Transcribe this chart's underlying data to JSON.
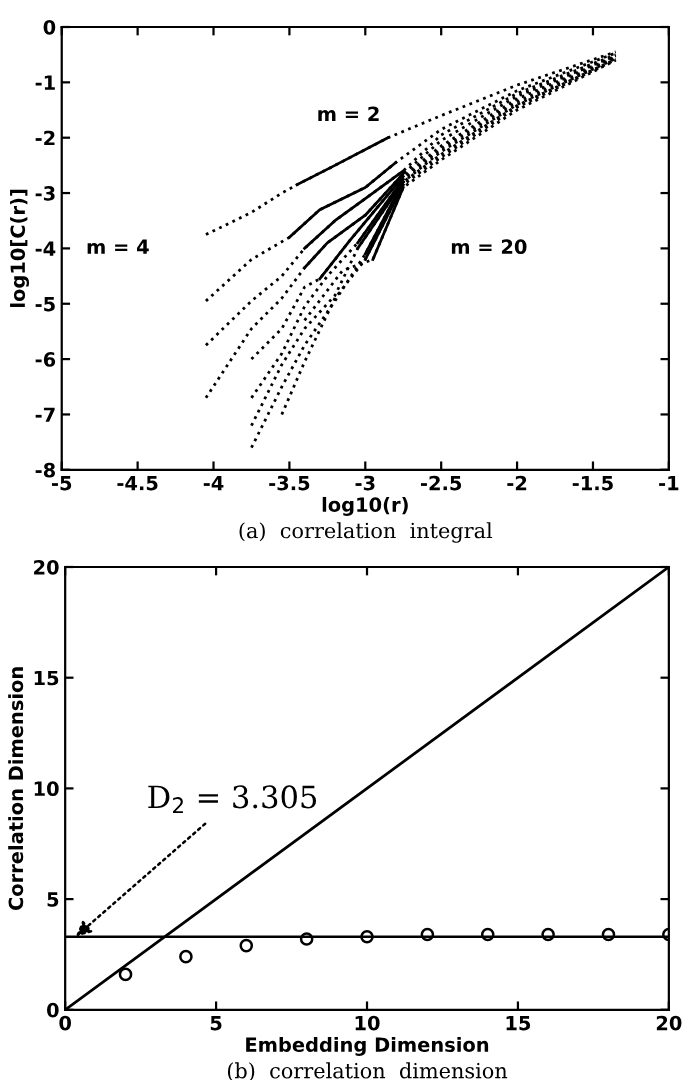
{
  "chart_data": [
    {
      "type": "line",
      "xlabel": "log10(r)",
      "ylabel": "log10[C(r)]",
      "xlim": [
        -5,
        -1
      ],
      "ylim": [
        -8,
        0
      ],
      "xticks": [
        -5,
        -4.5,
        -4,
        -3.5,
        -3,
        -2.5,
        -2,
        -1.5,
        -1
      ],
      "yticks": [
        -8,
        -7,
        -6,
        -5,
        -4,
        -3,
        -2,
        -1,
        0
      ],
      "grid": false,
      "legend": false,
      "marker": "none",
      "annotations": [
        "m = 2",
        "m = 4",
        "m = 20",
        "(a)  correlation  integral"
      ],
      "series": [
        {
          "color": "#000000",
          "line_style": "dotted",
          "x": [
            -4.05,
            -3.75,
            -3.55,
            -3.45,
            -3.2,
            -2.85,
            -2.5,
            -2,
            -1.35
          ],
          "values": [
            -3.75,
            -3.35,
            -3.0,
            -2.85,
            -2.5,
            -2.0,
            -1.6,
            -1.05,
            -0.45
          ]
        },
        {
          "color": "#000000",
          "line_style": "dotted",
          "x": [
            -4.05,
            -3.75,
            -3.5,
            -3.3,
            -3.0,
            -2.8,
            -2.5,
            -2,
            -1.35
          ],
          "values": [
            -4.95,
            -4.2,
            -3.8,
            -3.3,
            -2.9,
            -2.45,
            -1.85,
            -1.15,
            -0.47
          ]
        },
        {
          "color": "#000000",
          "line_style": "dotted",
          "x": [
            -4.05,
            -3.75,
            -3.55,
            -3.4,
            -3.2,
            -3.0,
            -2.75,
            -2.5,
            -2,
            -1.35
          ],
          "values": [
            -5.75,
            -4.95,
            -4.5,
            -4.0,
            -3.5,
            -3.1,
            -2.6,
            -1.95,
            -1.2,
            -0.5
          ]
        },
        {
          "color": "#000000",
          "line_style": "dotted",
          "x": [
            -4.05,
            -3.75,
            -3.55,
            -3.4,
            -3.25,
            -3.0,
            -2.75,
            -2.5,
            -2,
            -1.35
          ],
          "values": [
            -6.7,
            -5.45,
            -4.9,
            -4.35,
            -3.9,
            -3.4,
            -2.65,
            -2.05,
            -1.25,
            -0.52
          ]
        },
        {
          "color": "#000000",
          "line_style": "dotted",
          "x": [
            -3.75,
            -3.55,
            -3.4,
            -3.3,
            -3.1,
            -2.75,
            -2.5,
            -2,
            -1.35
          ],
          "values": [
            -6.0,
            -5.45,
            -4.7,
            -4.55,
            -3.85,
            -2.7,
            -2.15,
            -1.3,
            -0.53
          ]
        },
        {
          "color": "#000000",
          "line_style": "dotted",
          "x": [
            -3.75,
            -3.55,
            -3.4,
            -3.25,
            -3.05,
            -2.75,
            -2.5,
            -2,
            -1.35
          ],
          "values": [
            -6.7,
            -5.9,
            -5.05,
            -4.5,
            -3.9,
            -2.75,
            -2.2,
            -1.35,
            -0.55
          ]
        },
        {
          "color": "#000000",
          "line_style": "dotted",
          "x": [
            -3.75,
            -3.55,
            -3.4,
            -3.2,
            -3.05,
            -2.75,
            -2.5,
            -2,
            -1.35
          ],
          "values": [
            -7.2,
            -6.1,
            -5.45,
            -4.85,
            -4.0,
            -2.8,
            -2.25,
            -1.4,
            -0.57
          ]
        },
        {
          "color": "#000000",
          "line_style": "dotted",
          "x": [
            -3.75,
            -3.55,
            -3.4,
            -3.2,
            -3.0,
            -2.75,
            -2.5,
            -2,
            -1.35
          ],
          "values": [
            -7.6,
            -6.5,
            -5.75,
            -4.95,
            -4.1,
            -2.8,
            -2.3,
            -1.42,
            -0.58
          ]
        },
        {
          "color": "#000000",
          "line_style": "dotted",
          "x": [
            -3.55,
            -3.4,
            -3.2,
            -3.0,
            -2.75,
            -2.5,
            -2,
            -1.35
          ],
          "values": [
            -7.0,
            -6.05,
            -4.9,
            -4.2,
            -2.85,
            -2.35,
            -1.45,
            -0.59
          ]
        },
        {
          "color": "#000000",
          "line_style": "dotted",
          "x": [
            -3.4,
            -3.15,
            -2.95,
            -2.75,
            -2.5,
            -2,
            -1.35
          ],
          "values": [
            -5.3,
            -4.4,
            -4.2,
            -2.9,
            -2.4,
            -1.5,
            -0.6
          ]
        },
        {
          "color": "#000000",
          "line_style": "solid",
          "x": [
            -3.45,
            -3.2,
            -2.85
          ],
          "values": [
            -2.85,
            -2.5,
            -2.0
          ]
        },
        {
          "color": "#000000",
          "line_style": "solid",
          "x": [
            -3.5,
            -3.3,
            -3.0,
            -2.8
          ],
          "values": [
            -3.8,
            -3.3,
            -2.9,
            -2.45
          ]
        },
        {
          "color": "#000000",
          "line_style": "solid",
          "x": [
            -3.4,
            -3.2,
            -3.0,
            -2.75
          ],
          "values": [
            -4.0,
            -3.5,
            -3.1,
            -2.6
          ]
        },
        {
          "color": "#000000",
          "line_style": "solid",
          "x": [
            -3.4,
            -3.25,
            -3.0,
            -2.75
          ],
          "values": [
            -4.35,
            -3.9,
            -3.4,
            -2.65
          ]
        },
        {
          "color": "#000000",
          "line_style": "solid",
          "x": [
            -3.3,
            -3.1,
            -2.75
          ],
          "values": [
            -4.55,
            -3.85,
            -2.7
          ]
        },
        {
          "color": "#000000",
          "line_style": "solid",
          "x": [
            -3.05,
            -2.75
          ],
          "values": [
            -3.9,
            -2.75
          ]
        },
        {
          "color": "#000000",
          "line_style": "solid",
          "x": [
            -3.05,
            -2.75
          ],
          "values": [
            -4.0,
            -2.8
          ]
        },
        {
          "color": "#000000",
          "line_style": "solid",
          "x": [
            -3.0,
            -2.75
          ],
          "values": [
            -4.1,
            -2.8
          ]
        },
        {
          "color": "#000000",
          "line_style": "solid",
          "x": [
            -3.0,
            -2.75
          ],
          "values": [
            -4.2,
            -2.85
          ]
        },
        {
          "color": "#000000",
          "line_style": "solid",
          "x": [
            -2.95,
            -2.75
          ],
          "values": [
            -4.2,
            -2.9
          ]
        }
      ]
    },
    {
      "type": "scatter",
      "xlabel": "Embedding Dimension",
      "ylabel": "Correlation Dimension",
      "xlim": [
        0,
        20
      ],
      "ylim": [
        0,
        20
      ],
      "xticks": [
        0,
        5,
        10,
        15,
        20
      ],
      "yticks": [
        0,
        5,
        10,
        15,
        20
      ],
      "grid": false,
      "legend": false,
      "marker": "circle",
      "ref_lines": [
        {
          "axis": "y",
          "value": 3.305,
          "label": "D$_{2}$ = 3.305",
          "color": "#000000",
          "line_style": "solid"
        }
      ],
      "annotations": [
        "(b)  correlation  dimension"
      ],
      "series": [
        {
          "color": "#000000",
          "x": [
            2,
            4,
            6,
            8,
            10,
            12,
            14,
            16,
            18,
            20
          ],
          "values": [
            1.6,
            2.4,
            2.9,
            3.2,
            3.3,
            3.4,
            3.4,
            3.4,
            3.4,
            3.4
          ]
        },
        {
          "type": "line",
          "color": "#000000",
          "line_style": "solid",
          "marker": "none",
          "x": [
            0,
            20
          ],
          "values": [
            0,
            20
          ]
        }
      ]
    }
  ]
}
